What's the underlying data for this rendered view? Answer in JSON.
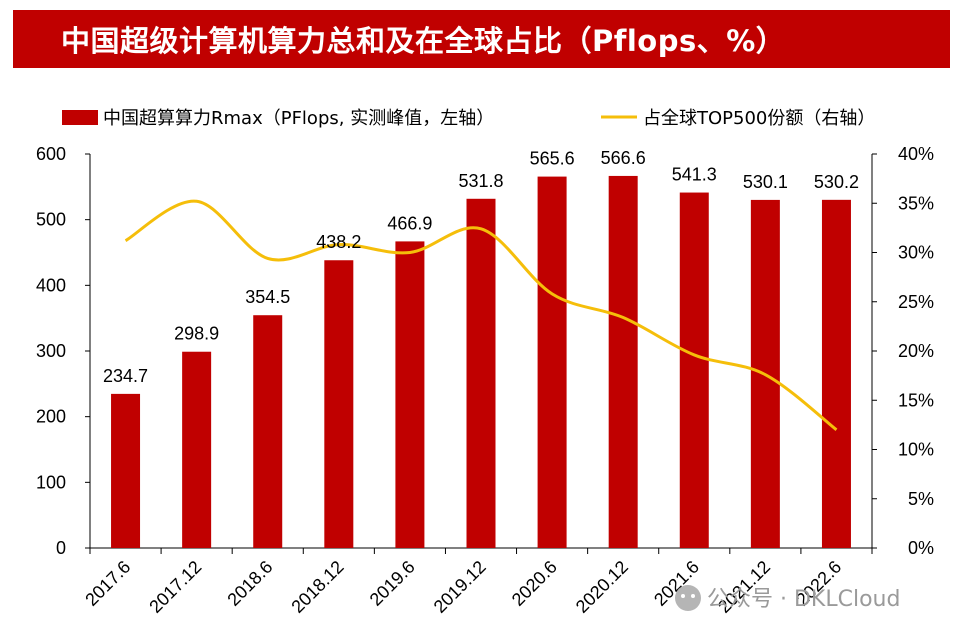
{
  "title": "中国超级计算机算力总和及在全球占比（Pflops、%）",
  "watermark": "公众号 · DKLCloud",
  "colors": {
    "bar": "#c00000",
    "line": "#f5be0a",
    "title_bg": "#c00000"
  },
  "chart_data": {
    "type": "bar+line",
    "categories": [
      "2017.6",
      "2017.12",
      "2018.6",
      "2018.12",
      "2019.6",
      "2019.12",
      "2020.6",
      "2020.12",
      "2021.6",
      "2021.12",
      "2022.6"
    ],
    "series": [
      {
        "name": "中国超算算力Rmax（PFlops, 实测峰值，左轴）",
        "type": "bar",
        "axis": "left",
        "values": [
          234.7,
          298.9,
          354.5,
          438.2,
          466.9,
          531.8,
          565.6,
          566.6,
          541.3,
          530.1,
          530.2
        ],
        "labels": [
          "234.7",
          "298.9",
          "354.5",
          "438.2",
          "466.9",
          "531.8",
          "565.6",
          "566.6",
          "541.3",
          "530.1",
          "530.2"
        ]
      },
      {
        "name": "占全球TOP500份额（右轴）",
        "type": "line",
        "axis": "right",
        "values": [
          31.2,
          35.2,
          29.4,
          30.8,
          30.0,
          32.4,
          25.8,
          23.4,
          19.6,
          17.6,
          12.0
        ]
      }
    ],
    "y_left": {
      "lim": [
        0,
        600
      ],
      "ticks": [
        "0",
        "100",
        "200",
        "300",
        "400",
        "500",
        "600"
      ]
    },
    "y_right": {
      "lim": [
        0,
        40
      ],
      "ticks": [
        "0%",
        "5%",
        "10%",
        "15%",
        "20%",
        "25%",
        "30%",
        "35%",
        "40%"
      ]
    },
    "legend_position": "top"
  }
}
